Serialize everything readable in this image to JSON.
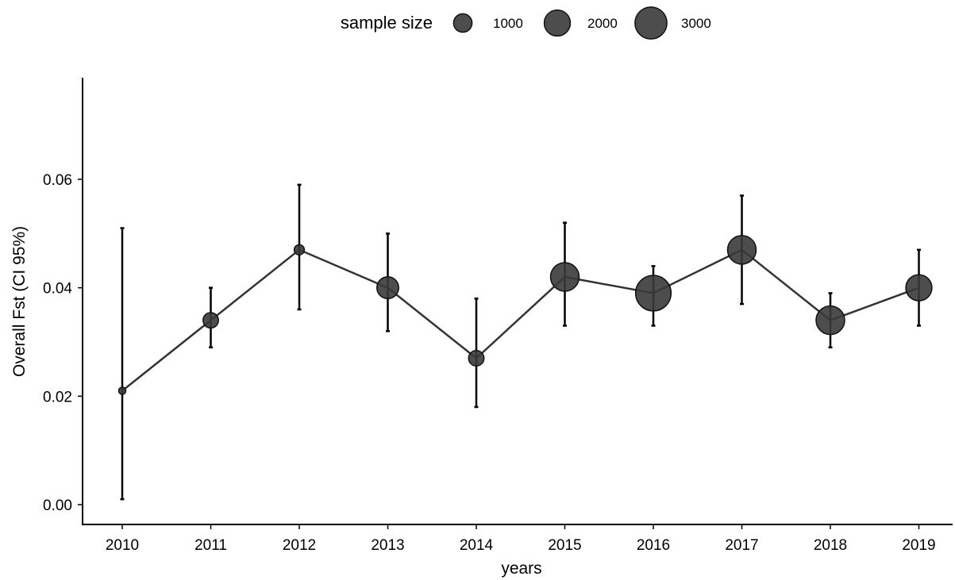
{
  "chart_data": {
    "type": "scatter",
    "xlabel": "years",
    "ylabel": "Overall Fst (CI 95%)",
    "ylim": [
      -0.004,
      0.078
    ],
    "y_ticks": [
      0.0,
      0.02,
      0.04,
      0.06
    ],
    "y_tick_labels": [
      "0.00",
      "0.02",
      "0.04",
      "0.06"
    ],
    "x_categories": [
      "2010",
      "2011",
      "2012",
      "2013",
      "2014",
      "2015",
      "2016",
      "2017",
      "2018",
      "2019"
    ],
    "grid": false,
    "connected_line": true,
    "legend": {
      "title": "sample size",
      "position": "top",
      "entries": [
        {
          "label": "1000",
          "size": 1000
        },
        {
          "label": "2000",
          "size": 2000
        },
        {
          "label": "3000",
          "size": 3000
        }
      ]
    },
    "series": [
      {
        "points": [
          {
            "x": "2010",
            "y": 0.021,
            "ci_low": 0.001,
            "ci_high": 0.051,
            "sample_size": 150
          },
          {
            "x": "2011",
            "y": 0.034,
            "ci_low": 0.029,
            "ci_high": 0.04,
            "sample_size": 700
          },
          {
            "x": "2012",
            "y": 0.047,
            "ci_low": 0.036,
            "ci_high": 0.059,
            "sample_size": 300
          },
          {
            "x": "2013",
            "y": 0.04,
            "ci_low": 0.032,
            "ci_high": 0.05,
            "sample_size": 1400
          },
          {
            "x": "2014",
            "y": 0.027,
            "ci_low": 0.018,
            "ci_high": 0.038,
            "sample_size": 700
          },
          {
            "x": "2015",
            "y": 0.042,
            "ci_low": 0.033,
            "ci_high": 0.052,
            "sample_size": 2400
          },
          {
            "x": "2016",
            "y": 0.039,
            "ci_low": 0.033,
            "ci_high": 0.044,
            "sample_size": 3700
          },
          {
            "x": "2017",
            "y": 0.047,
            "ci_low": 0.037,
            "ci_high": 0.057,
            "sample_size": 2400
          },
          {
            "x": "2018",
            "y": 0.034,
            "ci_low": 0.029,
            "ci_high": 0.039,
            "sample_size": 2400
          },
          {
            "x": "2019",
            "y": 0.04,
            "ci_low": 0.033,
            "ci_high": 0.047,
            "sample_size": 2000
          }
        ]
      }
    ],
    "colors": {
      "point_fill": "#3a3a3a",
      "point_stroke": "#111111",
      "line": "#333333",
      "errorbar": "#000000",
      "axis": "#000000"
    }
  }
}
